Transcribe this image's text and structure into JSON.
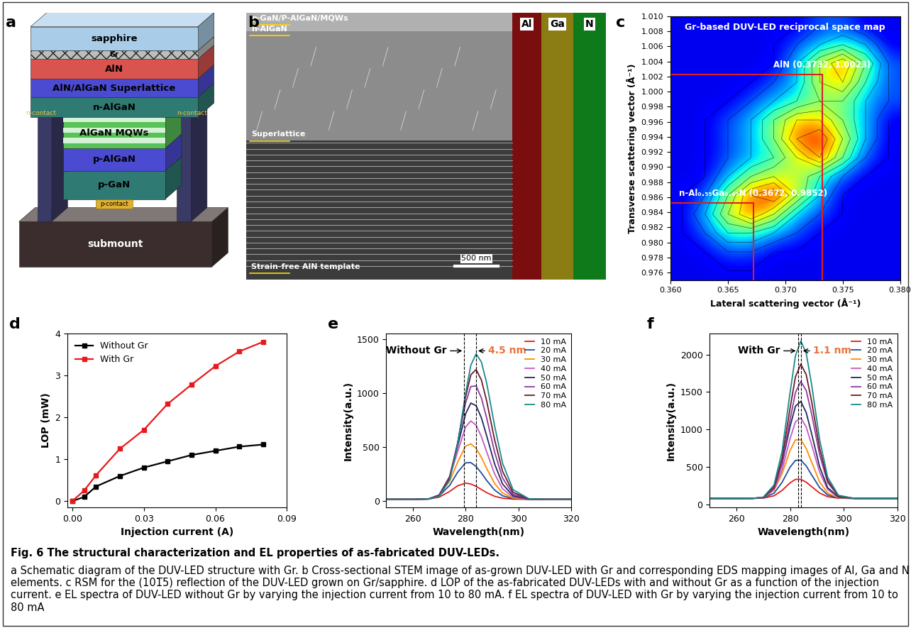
{
  "schematic": {
    "panel_label": "a",
    "layers": [
      "sapphire",
      "Gr",
      "AlN",
      "AlN/AlGaN Superlattice",
      "n-AlGaN",
      "AlGaN MQWs",
      "p-AlGaN",
      "p-GaN",
      "submount"
    ],
    "p_contact": "p-contact",
    "n_contacts": [
      "n-contact",
      "n-contact"
    ]
  },
  "stem": {
    "panel_label": "b",
    "top_label": "p-GaN/P-AlGaN/MQWs",
    "n_label": "n-AlGaN",
    "superlattice_label": "Superlattice",
    "template_label": "Strain-free AlN template",
    "scale_bar": "500 nm",
    "eds": [
      "Al",
      "Ga",
      "N"
    ]
  },
  "chart_data": [
    {
      "type": "heatmap",
      "panel_label": "c",
      "title": "Gr-based DUV-LED reciprocal space map",
      "x_label": "Lateral scattering vector (Å⁻¹)",
      "y_label": "Transverse scattering vector (Å⁻¹)",
      "x_bins": [
        0.36,
        0.362,
        0.364,
        0.366,
        0.368,
        0.37,
        0.372,
        0.374,
        0.376,
        0.378,
        0.38
      ],
      "y_bins": [
        0.975,
        0.9775,
        0.98,
        0.9825,
        0.985,
        0.9875,
        0.99,
        0.9925,
        0.995,
        0.9975,
        1.0,
        1.0025,
        1.005,
        1.0075,
        1.01
      ],
      "cells": [
        [
          1,
          1,
          1,
          1,
          1,
          1,
          1,
          1,
          1,
          1
        ],
        [
          1,
          1,
          2,
          2,
          1,
          1,
          1,
          1,
          1,
          1
        ],
        [
          1,
          2,
          4,
          4,
          3,
          2,
          1,
          1,
          1,
          1
        ],
        [
          1,
          3,
          6,
          8,
          6,
          3,
          2,
          1,
          1,
          1
        ],
        [
          1,
          2,
          5,
          8,
          9,
          6,
          3,
          1,
          1,
          1
        ],
        [
          1,
          1,
          3,
          5,
          6,
          6,
          4,
          2,
          1,
          1
        ],
        [
          1,
          1,
          2,
          3,
          4,
          6,
          8,
          5,
          2,
          1
        ],
        [
          1,
          1,
          2,
          3,
          5,
          8,
          9,
          6,
          3,
          1
        ],
        [
          1,
          1,
          2,
          3,
          5,
          7,
          7,
          5,
          3,
          1
        ],
        [
          1,
          1,
          1,
          2,
          3,
          4,
          5,
          5,
          3,
          2
        ],
        [
          1,
          1,
          1,
          1,
          2,
          3,
          6,
          7,
          4,
          2
        ],
        [
          1,
          1,
          1,
          1,
          1,
          3,
          6,
          8,
          5,
          2
        ],
        [
          1,
          1,
          1,
          1,
          1,
          2,
          3,
          4,
          3,
          1
        ],
        [
          1,
          1,
          1,
          1,
          1,
          1,
          2,
          2,
          1,
          1
        ]
      ],
      "color_range": [
        0,
        10
      ],
      "xlim": [
        0.36,
        0.38
      ],
      "ylim": [
        0.975,
        1.01
      ],
      "xticks": [
        {
          "value": 0.36,
          "label": "0.360"
        },
        0.365,
        {
          "value": 0.37,
          "label": "0.370"
        },
        0.375,
        {
          "value": 0.38,
          "label": "0.380"
        }
      ],
      "yticks": [
        0.976,
        0.978,
        {
          "value": 0.98,
          "label": "0.980"
        },
        0.982,
        0.984,
        0.986,
        0.988,
        {
          "value": 0.99,
          "label": "0.990"
        },
        0.992,
        0.994,
        0.996,
        0.998,
        {
          "value": 1.0,
          "label": "1.000"
        },
        1.002,
        1.004,
        1.006,
        1.008,
        {
          "value": 1.01,
          "label": "1.010"
        }
      ],
      "points": [
        {
          "text": "AlN (0.3732, 1.0023)",
          "x": 0.3732,
          "y": 1.0023
        },
        {
          "text": "n-Al₀.₅₅Ga₀.₄₅N (0.3672, 0.9852)",
          "x": 0.3672,
          "y": 0.9852
        }
      ]
    },
    {
      "type": "line",
      "panel_label": "d",
      "x_label": "Injection current (A)",
      "y_label": "LOP (mW)",
      "x": [
        0,
        0.005,
        0.01,
        0.02,
        0.03,
        0.04,
        0.05,
        0.06,
        0.07,
        0.08
      ],
      "series": [
        {
          "name": "Without Gr",
          "color": "#000000",
          "marker": "square",
          "values": [
            0,
            0.1,
            0.35,
            0.6,
            0.8,
            0.95,
            1.1,
            1.2,
            1.3,
            1.35
          ]
        },
        {
          "name": "With Gr",
          "color": "#e8191c",
          "marker": "square",
          "values": [
            0,
            0.25,
            0.62,
            1.25,
            1.7,
            2.32,
            2.78,
            3.22,
            3.57,
            3.8
          ]
        }
      ],
      "xlim": [
        -0.002,
        0.09
      ],
      "ylim": [
        -0.15,
        4
      ],
      "xticks": [
        {
          "value": 0,
          "label": "0.00"
        },
        0.03,
        0.06,
        0.09
      ],
      "yticks": [
        0,
        1,
        2,
        3,
        4
      ],
      "legend": "upper left"
    },
    {
      "type": "line",
      "panel_label": "e",
      "x_label": "Wavelength(nm)",
      "y_label": "Intensity(a.u.)",
      "annotation": "Without Gr",
      "shift_lines": [
        279.5,
        284
      ],
      "shift_label": "4.5 nm",
      "x": [
        250,
        260,
        266,
        270,
        274,
        277,
        280,
        282,
        284,
        286,
        288,
        291,
        294,
        298,
        304,
        310,
        320
      ],
      "series": [
        {
          "name": "10 mA",
          "color": "#e31a1c",
          "values": [
            15,
            15,
            18,
            35,
            88,
            140,
            165,
            157,
            135,
            106,
            77,
            43,
            25,
            17,
            15,
            15,
            15
          ]
        },
        {
          "name": "20 mA",
          "color": "#1f4e9c",
          "values": [
            15,
            15,
            19,
            46,
            144,
            265,
            353,
            355,
            319,
            259,
            190,
            101,
            48,
            21,
            15,
            15,
            15
          ]
        },
        {
          "name": "30 mA",
          "color": "#ff8c00",
          "values": [
            15,
            15,
            19,
            52,
            182,
            358,
            507,
            528,
            487,
            404,
            301,
            162,
            74,
            27,
            15,
            15,
            15
          ]
        },
        {
          "name": "40 mA",
          "color": "#c45ac4",
          "values": [
            15,
            15,
            19,
            56,
            217,
            455,
            684,
            740,
            701,
            596,
            455,
            251,
            113,
            36,
            16,
            15,
            15
          ]
        },
        {
          "name": "50 mA",
          "color": "#1f2a5a",
          "values": [
            15,
            15,
            19,
            54,
            226,
            504,
            804,
            906,
            882,
            770,
            603,
            343,
            157,
            47,
            16,
            15,
            15
          ]
        },
        {
          "name": "60 mA",
          "color": "#8e3a9e",
          "values": [
            15,
            15,
            18,
            51,
            226,
            534,
            904,
            1059,
            1065,
            954,
            768,
            453,
            213,
            62,
            17,
            15,
            15
          ]
        },
        {
          "name": "70 mA",
          "color": "#6b1a2a",
          "values": [
            15,
            15,
            17,
            46,
            213,
            533,
            959,
            1167,
            1216,
            1120,
            925,
            567,
            275,
            80,
            19,
            15,
            15
          ]
        },
        {
          "name": "80 mA",
          "color": "#1a8a8a",
          "values": [
            15,
            15,
            17,
            42,
            197,
            519,
            991,
            1256,
            1360,
            1287,
            1092,
            696,
            350,
            104,
            20,
            15,
            15
          ]
        }
      ],
      "xlim": [
        250,
        320
      ],
      "ylim": [
        -60,
        1550
      ],
      "xticks": [
        260,
        280,
        300,
        320
      ],
      "yticks": [
        0,
        500,
        1000,
        1500
      ],
      "legend": "upper right"
    },
    {
      "type": "line",
      "panel_label": "f",
      "x_label": "Wavelength(nm)",
      "y_label": "Intensity(a.u.)",
      "annotation": "With Gr",
      "shift_lines": [
        282.9,
        284
      ],
      "shift_label": "1.1 nm",
      "x": [
        250,
        260,
        266,
        270,
        274,
        277,
        280,
        282,
        284,
        286,
        288,
        291,
        294,
        298,
        304,
        310,
        320
      ],
      "series": [
        {
          "name": "10 mA",
          "color": "#e31a1c",
          "values": [
            80,
            80,
            80,
            84,
            115,
            187,
            288,
            334,
            335,
            297,
            238,
            152,
            103,
            83,
            80,
            80,
            80
          ]
        },
        {
          "name": "20 mA",
          "color": "#1f4e9c",
          "values": [
            80,
            80,
            80,
            88,
            150,
            294,
            497,
            588,
            590,
            514,
            396,
            225,
            126,
            86,
            80,
            80,
            80
          ]
        },
        {
          "name": "30 mA",
          "color": "#ff8c00",
          "values": [
            80,
            80,
            81,
            92,
            188,
            409,
            721,
            861,
            864,
            748,
            566,
            302,
            151,
            89,
            80,
            80,
            80
          ]
        },
        {
          "name": "40 mA",
          "color": "#c45ac4",
          "values": [
            80,
            80,
            81,
            92,
            197,
            460,
            878,
            1102,
            1155,
            1033,
            800,
            431,
            199,
            96,
            80,
            80,
            80
          ]
        },
        {
          "name": "50 mA",
          "color": "#1f2a5a",
          "values": [
            80,
            80,
            81,
            94,
            220,
            538,
            1041,
            1310,
            1374,
            1227,
            947,
            503,
            223,
            100,
            80,
            80,
            80
          ]
        },
        {
          "name": "60 mA",
          "color": "#8e3a9e",
          "values": [
            80,
            80,
            80,
            92,
            213,
            545,
            1131,
            1493,
            1640,
            1520,
            1213,
            665,
            291,
            111,
            80,
            80,
            80
          ]
        },
        {
          "name": "70 mA",
          "color": "#6b1a2a",
          "values": [
            80,
            80,
            81,
            94,
            232,
            613,
            1286,
            1702,
            1870,
            1732,
            1380,
            751,
            322,
            116,
            80,
            80,
            80
          ]
        },
        {
          "name": "80 mA",
          "color": "#1a8a8a",
          "values": [
            80,
            80,
            81,
            97,
            259,
            706,
            1495,
            1983,
            2180,
            2018,
            1605,
            868,
            364,
            122,
            80,
            80,
            80
          ]
        }
      ],
      "xlim": [
        250,
        320
      ],
      "ylim": [
        -40,
        2280
      ],
      "xticks": [
        260,
        280,
        300,
        320
      ],
      "yticks": [
        0,
        500,
        1000,
        1500,
        2000
      ],
      "legend": "upper right"
    }
  ],
  "caption": {
    "title": "Fig. 6 The structural characterization and EL properties of as-fabricated DUV-LEDs.",
    "text": "a Schematic diagram of the DUV-LED structure with Gr. b Cross-sectional STEM image of as-grown DUV-LED with Gr and corresponding EDS mapping images of Al, Ga and N elements. c RSM for the (101̅5) reflection of the DUV-LED grown on Gr/sapphire. d LOP of the as-fabricated DUV-LEDs with and without Gr as a function of the injection current. e EL spectra of DUV-LED without Gr by varying the injection current from 10 to 80 mA. f EL spectra of DUV-LED with Gr by varying the injection current from 10 to 80 mA"
  }
}
